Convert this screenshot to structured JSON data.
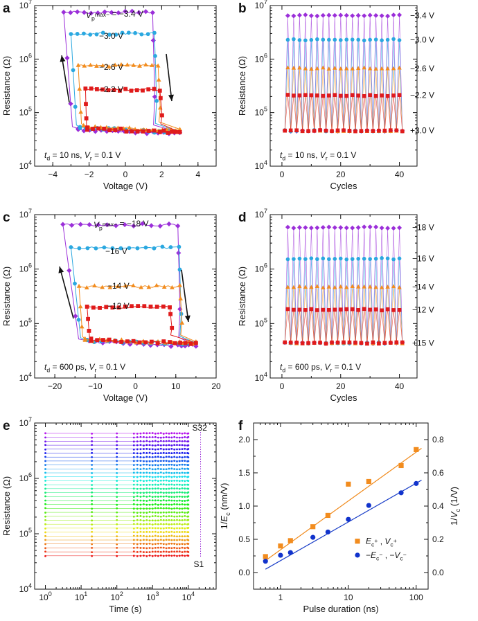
{
  "colors": {
    "purple": "#9B2FD9",
    "blue": "#2BA8E0",
    "orange": "#F28C1E",
    "red": "#E01B1B",
    "fit_orange": "#F08A1C",
    "fit_blue": "#1B3FC8",
    "navy": "#1133CC"
  },
  "chart_data": [
    {
      "panel": "a",
      "type": "line",
      "xlabel": "Voltage (V)",
      "ylabel": "Resistance (Ω)",
      "xlim": [
        -5,
        5
      ],
      "ylim": [
        10000,
        10000000
      ],
      "yscale": "log",
      "xticks": [
        "−4",
        "−2",
        "0",
        "2",
        "4"
      ],
      "yticks": [
        "10^4",
        "10^5",
        "10^6",
        "10^7"
      ],
      "annotation_prefix": "V",
      "annotation_sub": "p",
      "annotation_sup": "max−",
      "series": [
        {
          "label": "= −3.4 V",
          "color": "purple",
          "marker": "diamond",
          "low_R": 42000,
          "high_R": 7500000,
          "v_max": -3.4,
          "v_set": 1.5,
          "v_reset": -2.6,
          "v_end": 3.0
        },
        {
          "label": "−3.0 V",
          "color": "blue",
          "marker": "circle",
          "low_R": 45000,
          "high_R": 3000000,
          "v_max": -3.0,
          "v_set": 1.6,
          "v_reset": -2.5,
          "v_end": 3.0
        },
        {
          "label": "−2.6 V",
          "color": "orange",
          "marker": "triangle",
          "low_R": 48000,
          "high_R": 750000,
          "v_max": -2.6,
          "v_set": 1.8,
          "v_reset": -2.3,
          "v_end": 3.0
        },
        {
          "label": "−2.2 V",
          "color": "red",
          "marker": "square",
          "low_R": 44000,
          "high_R": 270000,
          "v_max": -2.2,
          "v_set": 1.9,
          "v_reset": -2.1,
          "v_end": 3.0
        }
      ],
      "footnote": {
        "t": "t",
        "t_sub": "d",
        "t_val": " = 10 ns, ",
        "v": "V",
        "v_sub": "r",
        "v_val": " = 0.1 V"
      }
    },
    {
      "panel": "b",
      "type": "line",
      "xlabel": "Cycles",
      "ylabel": "Resistance (Ω)",
      "xlim": [
        -4,
        46
      ],
      "ylim": [
        10000,
        10000000
      ],
      "yscale": "log",
      "xticks": [
        "0",
        "20",
        "40"
      ],
      "yticks": [
        "10^4",
        "10^5",
        "10^6",
        "10^7"
      ],
      "cycles": 40,
      "series": [
        {
          "label": "−3.4 V",
          "color": "purple",
          "marker": "diamond",
          "high_R": 6500000
        },
        {
          "label": "−3.0 V",
          "color": "blue",
          "marker": "circle",
          "high_R": 2300000
        },
        {
          "label": "−2.6 V",
          "color": "orange",
          "marker": "triangle",
          "high_R": 670000
        },
        {
          "label": "−2.2 V",
          "color": "red",
          "marker": "square",
          "high_R": 210000
        }
      ],
      "low_label": "+3.0 V",
      "low_R": 46000,
      "footnote": {
        "t": "t",
        "t_sub": "d",
        "t_val": " = 10 ns, ",
        "v": "V",
        "v_sub": "r",
        "v_val": " = 0.1 V"
      }
    },
    {
      "panel": "c",
      "type": "line",
      "xlabel": "Voltage (V)",
      "ylabel": "Resistance (Ω)",
      "xlim": [
        -25,
        20
      ],
      "ylim": [
        10000,
        10000000
      ],
      "yscale": "log",
      "xticks": [
        "−20",
        "−10",
        "0",
        "10",
        "20"
      ],
      "yticks": [
        "10^4",
        "10^5",
        "10^6",
        "10^7"
      ],
      "annotation_prefix": "V",
      "annotation_sub": "p",
      "annotation_sup": "max−",
      "series": [
        {
          "label": "= −18 V",
          "color": "purple",
          "marker": "diamond",
          "low_R": 40000,
          "high_R": 6500000,
          "v_max": -18,
          "v_set": 10.5,
          "v_reset": -11.5,
          "v_end": 15
        },
        {
          "label": "−16 V",
          "color": "blue",
          "marker": "circle",
          "low_R": 42000,
          "high_R": 2500000,
          "v_max": -16,
          "v_set": 10.8,
          "v_reset": -12,
          "v_end": 15
        },
        {
          "label": "−14 V",
          "color": "orange",
          "marker": "triangle",
          "low_R": 44000,
          "high_R": 480000,
          "v_max": -14,
          "v_set": 11,
          "v_reset": -12.5,
          "v_end": 15
        },
        {
          "label": "−12 V",
          "color": "red",
          "marker": "square",
          "low_R": 44000,
          "high_R": 200000,
          "v_max": -12,
          "v_set": 8.5,
          "v_reset": -11,
          "v_end": 15
        }
      ],
      "footnote": {
        "t": "t",
        "t_sub": "d",
        "t_val": " = 600 ps, ",
        "v": "V",
        "v_sub": "r",
        "v_val": " = 0.1 V"
      }
    },
    {
      "panel": "d",
      "type": "line",
      "xlabel": "Cycles",
      "ylabel": "Resistance (Ω)",
      "xlim": [
        -4,
        46
      ],
      "ylim": [
        10000,
        10000000
      ],
      "yscale": "log",
      "xticks": [
        "0",
        "20",
        "40"
      ],
      "yticks": [
        "10^4",
        "10^5",
        "10^6",
        "10^7"
      ],
      "cycles": 40,
      "series": [
        {
          "label": "−18 V",
          "color": "purple",
          "marker": "diamond",
          "high_R": 5800000
        },
        {
          "label": "−16 V",
          "color": "blue",
          "marker": "circle",
          "high_R": 1550000
        },
        {
          "label": "−14 V",
          "color": "orange",
          "marker": "triangle",
          "high_R": 470000
        },
        {
          "label": "−12 V",
          "color": "red",
          "marker": "square",
          "high_R": 180000
        }
      ],
      "low_label": "+15 V",
      "low_R": 44000,
      "footnote": {
        "t": "t",
        "t_sub": "d",
        "t_val": " = 600 ps, ",
        "v": "V",
        "v_sub": "r",
        "v_val": " = 0.1 V"
      }
    },
    {
      "panel": "e",
      "type": "scatter",
      "xlabel": "Time (s)",
      "ylabel": "Resistance (Ω)",
      "xscale": "log",
      "yscale": "log",
      "xlim": [
        0.5,
        60000
      ],
      "ylim": [
        10000,
        10000000
      ],
      "xticks": [
        "10^0",
        "10^1",
        "10^2",
        "10^3",
        "10^4"
      ],
      "yticks": [
        "10^4",
        "10^5",
        "10^6",
        "10^7"
      ],
      "states": 32,
      "R_min": 40000,
      "R_max": 6500000,
      "t_min": 1,
      "t_max": 10000,
      "label_top": "S32",
      "label_bottom": "S1"
    },
    {
      "panel": "f",
      "type": "scatter",
      "xlabel": "Pulse duration (ns)",
      "ylabel": "1/E_c (nm/V)",
      "ylabel_parts": {
        "pre": "1/",
        "var": "E",
        "sub": "c",
        "post": " (nm/V)"
      },
      "ylabel2_parts": {
        "pre": "1/",
        "var": "V",
        "sub": "c",
        "post": " (1/V)"
      },
      "xscale": "log",
      "xlim": [
        0.4,
        150
      ],
      "ylim": [
        -0.25,
        2.25
      ],
      "y2lim": [
        -0.1,
        0.9
      ],
      "xticks": [
        "1",
        "10",
        "100"
      ],
      "yticks": [
        "0.0",
        "0.5",
        "1.0",
        "1.5",
        "2.0"
      ],
      "y2ticks": [
        "0.0",
        "0.2",
        "0.4",
        "0.6",
        "0.8"
      ],
      "series": [
        {
          "name_parts": {
            "a": "E",
            "a_sub": "c",
            "a_sup": "+",
            "sep": " , ",
            "b": "V",
            "b_sub": "c",
            "b_sup": "+"
          },
          "color": "orange",
          "marker": "square",
          "x": [
            0.6,
            1,
            1.4,
            3,
            5,
            10,
            20,
            60,
            100
          ],
          "y": [
            0.24,
            0.4,
            0.48,
            0.69,
            0.86,
            1.33,
            1.37,
            1.61,
            1.85
          ],
          "fit": [
            [
              0.6,
              0.18
            ],
            [
              120,
              1.87
            ]
          ]
        },
        {
          "name_parts": {
            "a": "−E",
            "a_sub": "c",
            "a_sup": "−",
            "sep": " , ",
            "b": "−V",
            "b_sub": "c",
            "b_sup": "−"
          },
          "color": "navy",
          "marker": "circle",
          "x": [
            0.6,
            1,
            1.4,
            3,
            5,
            10,
            20,
            60,
            100
          ],
          "y": [
            0.17,
            0.26,
            0.3,
            0.53,
            0.61,
            0.8,
            1.01,
            1.2,
            1.34
          ],
          "fit": [
            [
              0.6,
              0.05
            ],
            [
              120,
              1.39
            ]
          ]
        }
      ]
    }
  ],
  "panel_letters": [
    "a",
    "b",
    "c",
    "d",
    "e",
    "f"
  ]
}
